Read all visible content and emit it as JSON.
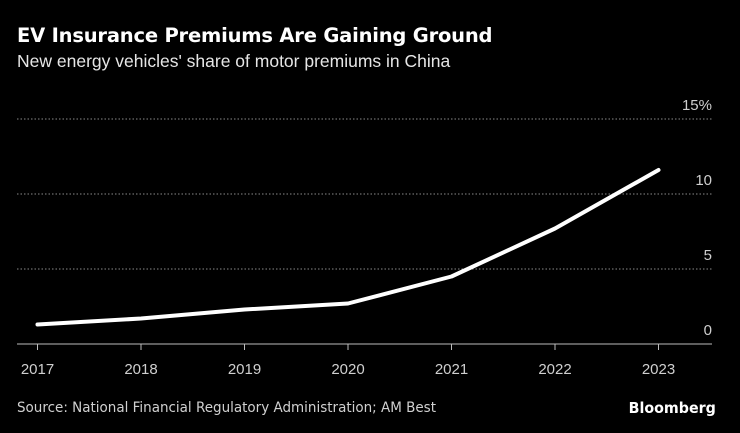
{
  "chart_data": {
    "type": "line",
    "title": "EV Insurance Premiums Are Gaining Ground",
    "subtitle": "New energy vehicles' share of motor premiums in China",
    "categories": [
      "2017",
      "2018",
      "2019",
      "2020",
      "2021",
      "2022",
      "2023"
    ],
    "series": [
      {
        "values": [
          1.3,
          1.7,
          2.3,
          2.7,
          4.5,
          7.7,
          11.6
        ]
      }
    ],
    "ylim": [
      0,
      15
    ],
    "yticks": [
      0,
      5,
      10,
      15
    ],
    "ytick_labels": [
      "0",
      "5",
      "10",
      "15%"
    ],
    "y_axis_side": "right",
    "grid": true,
    "line_color": "#ffffff",
    "background": "#000000",
    "source": "Source: National Financial Regulatory Administration; AM Best"
  },
  "brand": "Bloomberg"
}
